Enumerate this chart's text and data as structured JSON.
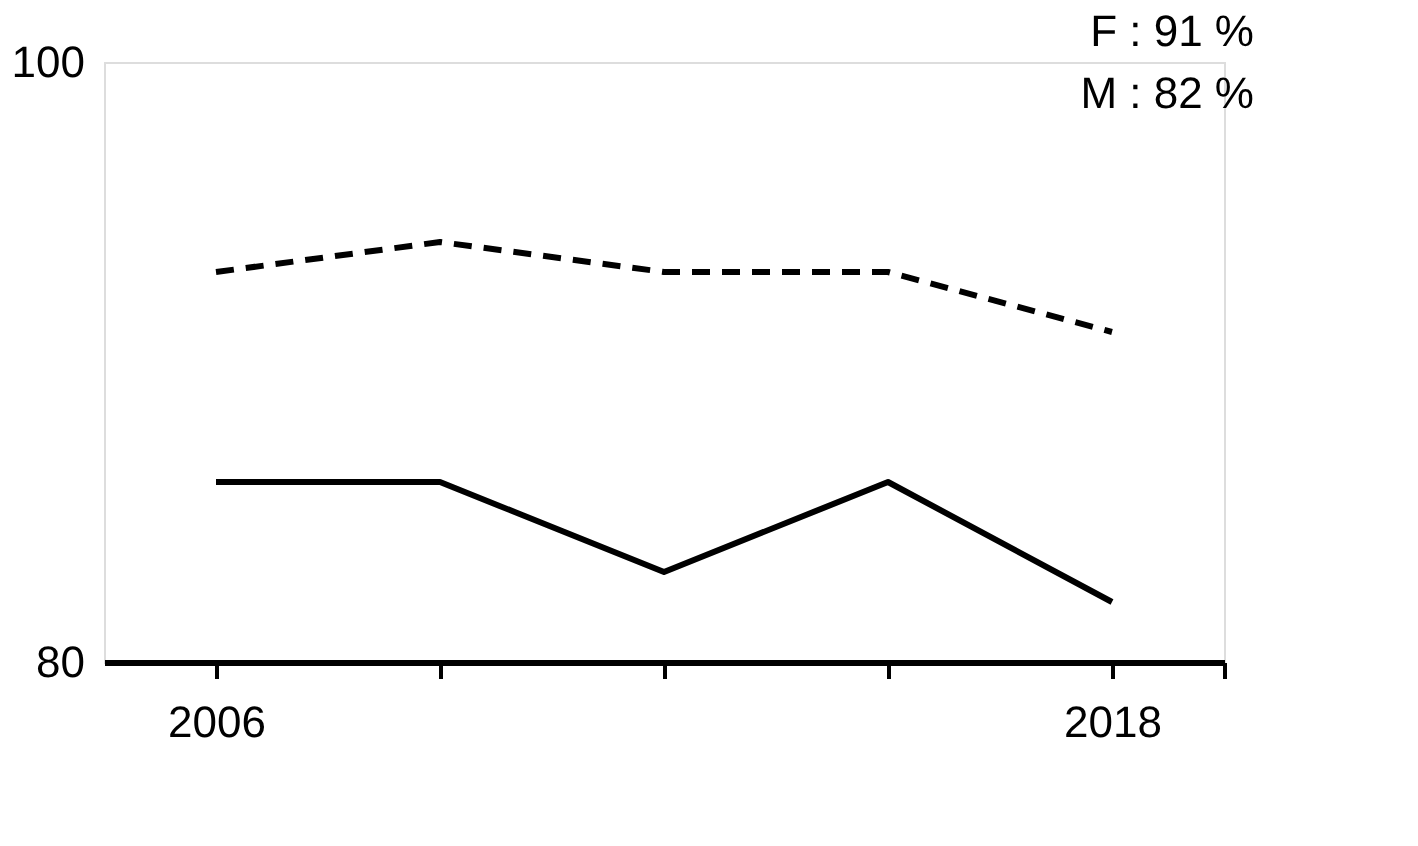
{
  "chart_data": {
    "type": "line",
    "x": [
      2006,
      2009,
      2012,
      2015,
      2018
    ],
    "series": [
      {
        "color": "#000000",
        "line_style": "dashed",
        "values": [
          93,
          94,
          93,
          93,
          91
        ]
      },
      {
        "color": "#000000",
        "line_style": "solid",
        "values": [
          86,
          86,
          83,
          86,
          82
        ]
      }
    ],
    "xlim": [
      2004.5,
      2019.5
    ],
    "xticks": [
      2006,
      {
        "value": 2009,
        "label": null
      },
      {
        "value": 2012,
        "label": null
      },
      {
        "value": 2015,
        "label": null
      },
      2018,
      {
        "value": 2019.5,
        "label": null
      }
    ],
    "ylim": [
      80,
      100
    ],
    "yticks": [
      80,
      100
    ],
    "annotations": [
      "F : 91 %",
      "M : 82 %"
    ],
    "grid": false,
    "marker": "none"
  }
}
